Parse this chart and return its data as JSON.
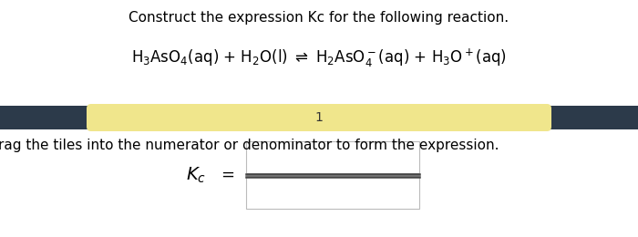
{
  "title": "Construct the expression Kc for the following reaction.",
  "banner_text": "1",
  "banner_bg": "#f0e68c",
  "banner_border": "#2c3a4a",
  "drag_text": "rag the tiles into the numerator or denominator to form the expression.",
  "background": "#ffffff",
  "box_color": "#ffffff",
  "box_edge": "#bbbbbb",
  "title_fontsize": 11,
  "reaction_fontsize": 12,
  "banner_fontsize": 10,
  "drag_fontsize": 11,
  "fig_width": 7.0,
  "fig_height": 2.6,
  "dpi": 100
}
